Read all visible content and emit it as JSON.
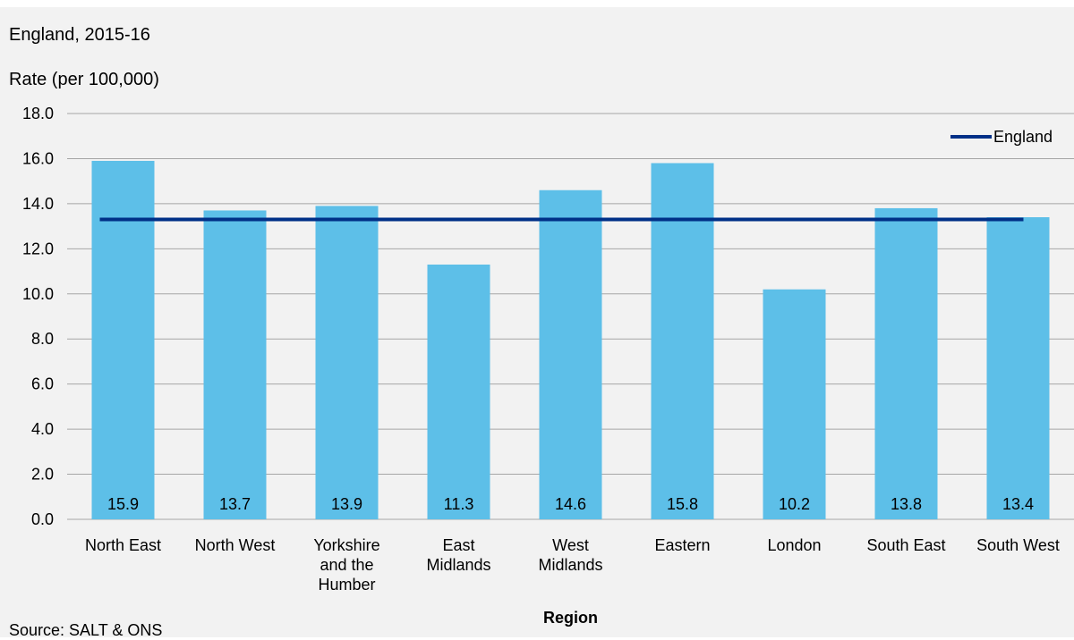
{
  "header": {
    "subtitle": "England, 2015-16",
    "ylabel": "Rate (per 100,000)"
  },
  "footer": {
    "source": "Source: SALT & ONS"
  },
  "chart_data": {
    "type": "bar",
    "categories": [
      "North East",
      "North West",
      "Yorkshire and the Humber",
      "East Midlands",
      "West Midlands",
      "Eastern",
      "London",
      "South East",
      "South West"
    ],
    "category_lines": [
      [
        "North East"
      ],
      [
        "North West"
      ],
      [
        "Yorkshire",
        "and the",
        "Humber"
      ],
      [
        "East",
        "Midlands"
      ],
      [
        "West",
        "Midlands"
      ],
      [
        "Eastern"
      ],
      [
        "London"
      ],
      [
        "South East"
      ],
      [
        "South West"
      ]
    ],
    "values": [
      15.9,
      13.7,
      13.9,
      11.3,
      14.6,
      15.8,
      10.2,
      13.8,
      13.4
    ],
    "data_labels": [
      "15.9",
      "13.7",
      "13.9",
      "11.3",
      "14.6",
      "15.8",
      "10.2",
      "13.8",
      "13.4"
    ],
    "reference_line": {
      "name": "England",
      "value": 13.3
    },
    "xlabel": "Region",
    "ylabel": "Rate (per 100,000)",
    "ylim": [
      0,
      18
    ],
    "yticks": [
      "0.0",
      "2.0",
      "4.0",
      "6.0",
      "8.0",
      "10.0",
      "12.0",
      "14.0",
      "16.0",
      "18.0"
    ],
    "grid": true,
    "legend": "top-right",
    "colors": {
      "bar": "#5dbfe8",
      "reference_line": "#003087",
      "grid": "#a6a6a6"
    }
  }
}
